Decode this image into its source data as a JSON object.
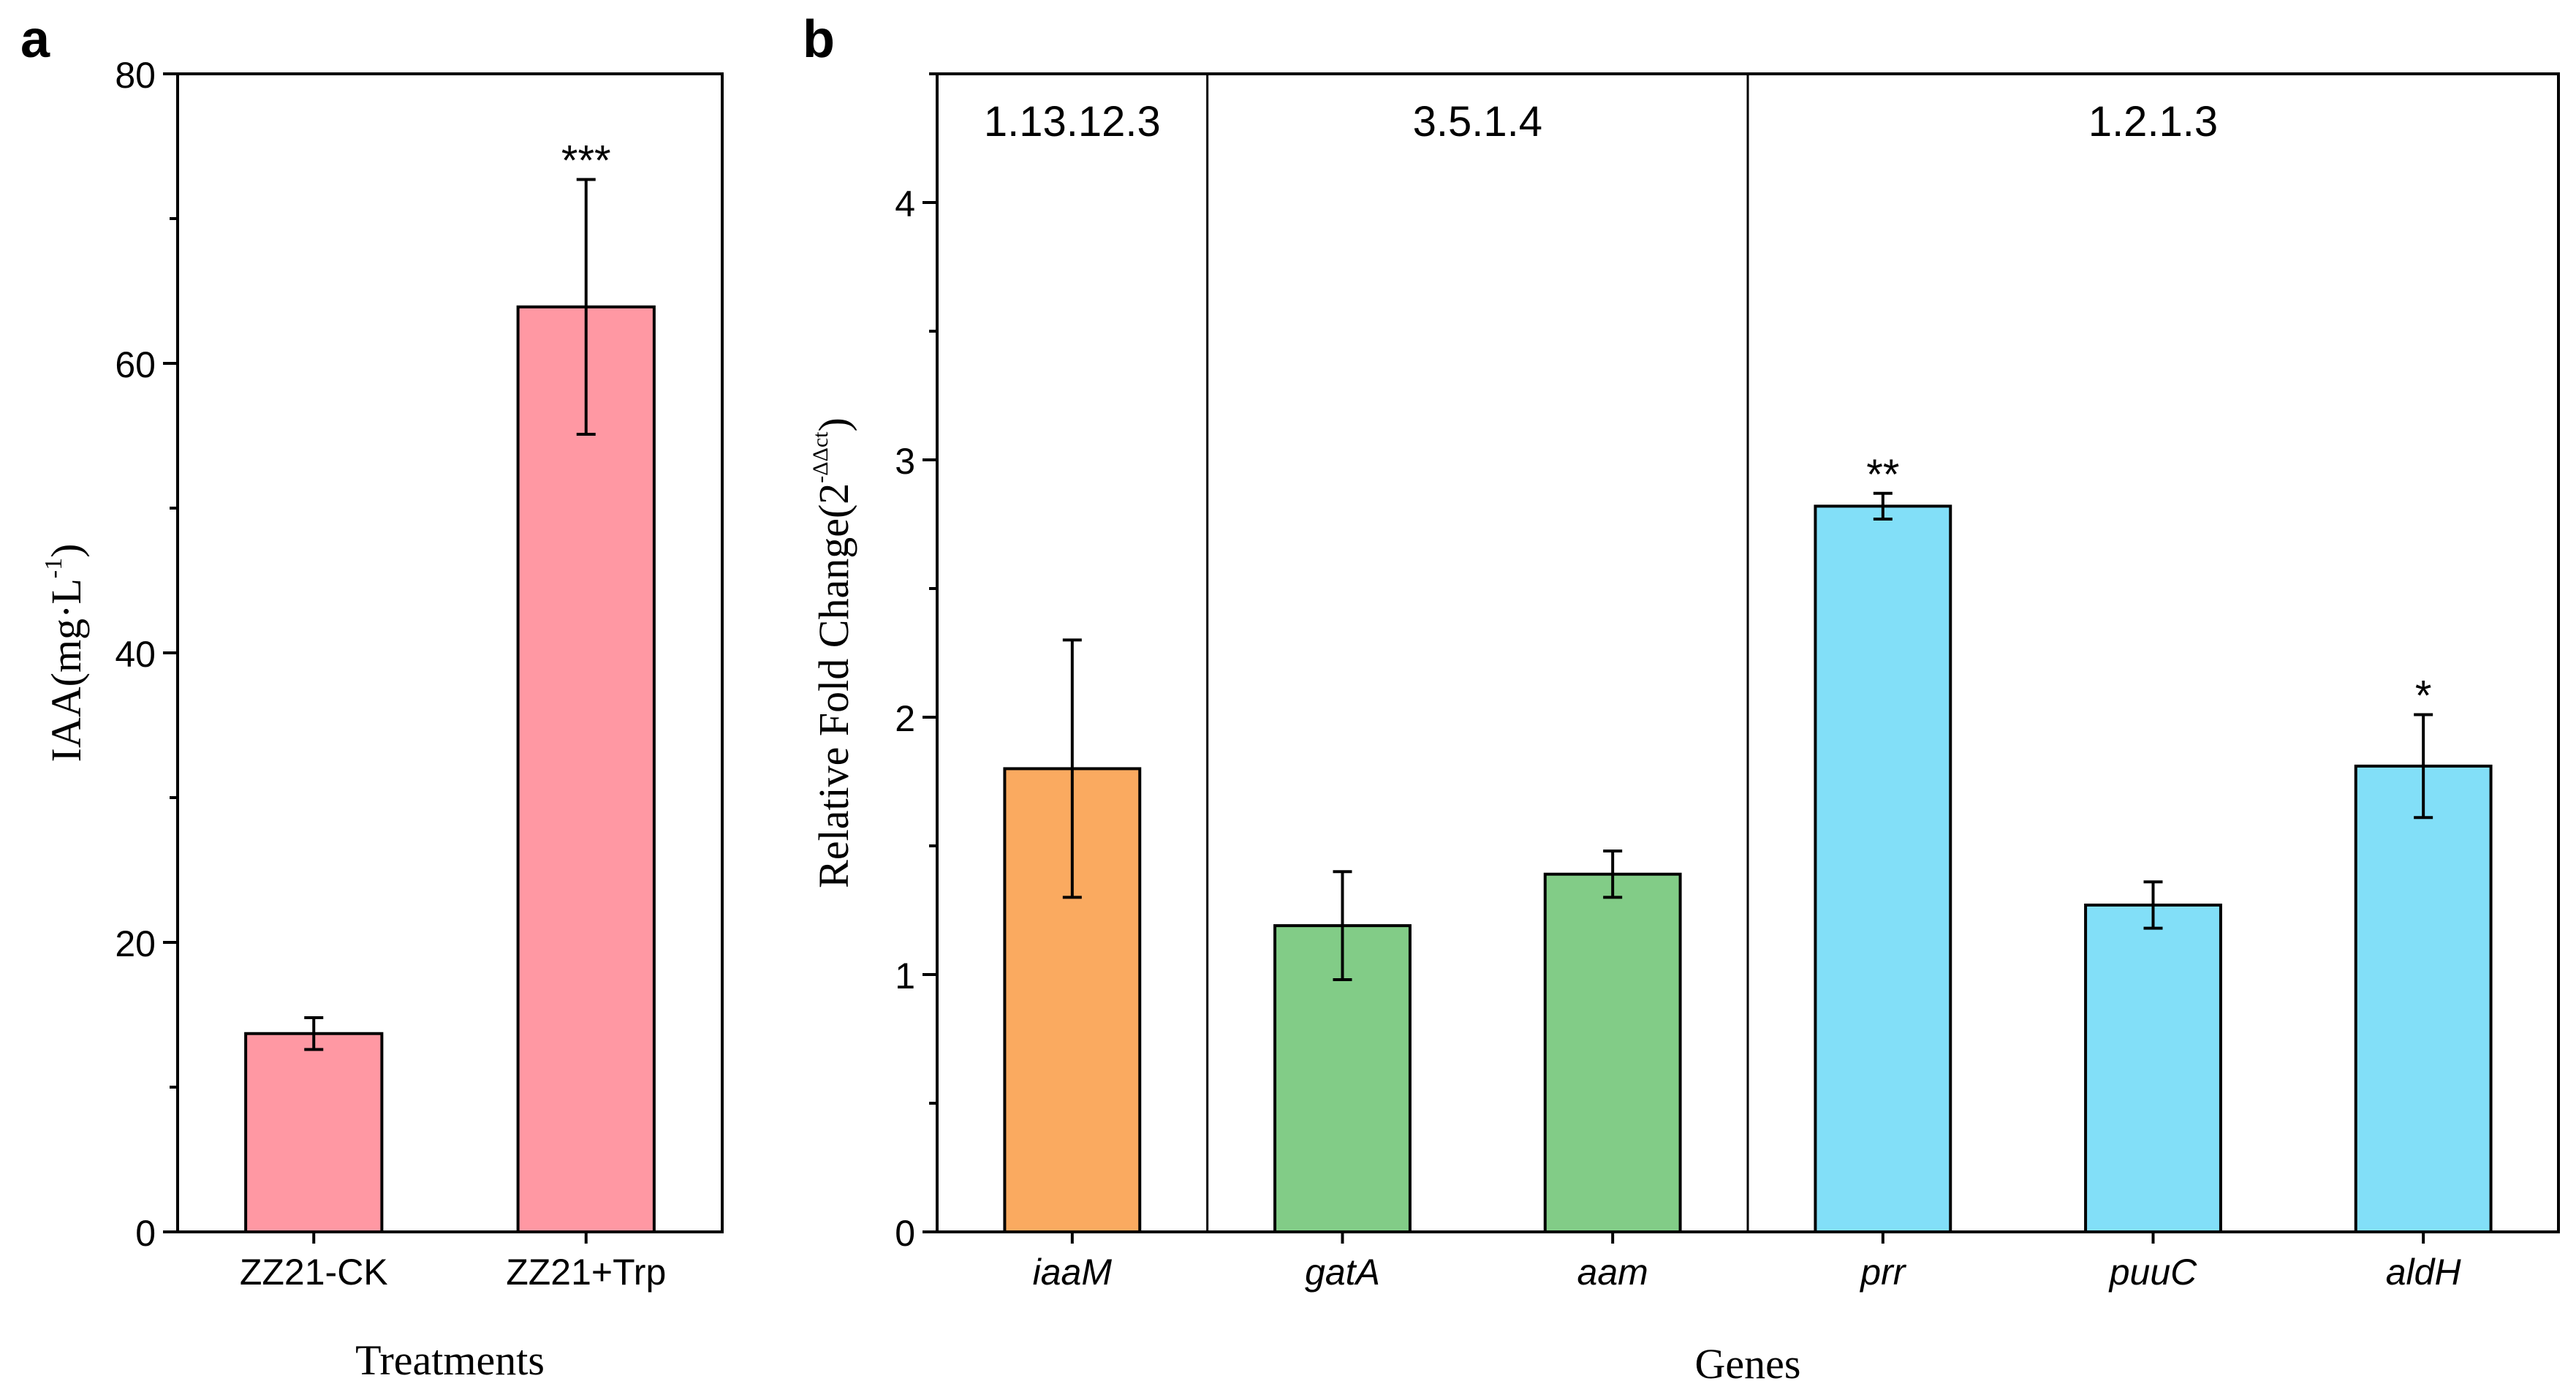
{
  "figure": {
    "panel_a_letter": "a",
    "panel_b_letter": "b"
  },
  "colors": {
    "pink": "#FF98A3",
    "orange": "#FAAA60",
    "green": "#82CC87",
    "blue": "#82DFF8",
    "axis": "#000000"
  },
  "chart_data": [
    {
      "id": "panel-a",
      "type": "bar",
      "title": "",
      "categories": [
        "ZZ21-CK",
        "ZZ21+Trp"
      ],
      "values": [
        13.7,
        63.9
      ],
      "errors": [
        1.1,
        8.8
      ],
      "significance": [
        "",
        "***"
      ],
      "xlabel": "Treatments",
      "ylabel_main": "IAA(mg·L",
      "ylabel_sup": "-1",
      "ylabel_end": ")",
      "ylim": [
        0,
        80
      ],
      "yticks": [
        0,
        20,
        40,
        60,
        80
      ],
      "ytick_labels": [
        "0",
        "20",
        "40",
        "60",
        "80"
      ],
      "color_key": "pink"
    },
    {
      "id": "panel-b",
      "type": "bar",
      "title": "",
      "categories": [
        "iaaM",
        "gatA",
        "aam",
        "prr",
        "puuC",
        "aldH"
      ],
      "values": [
        1.8,
        1.19,
        1.39,
        2.82,
        1.27,
        1.81
      ],
      "errors": [
        0.5,
        0.21,
        0.09,
        0.05,
        0.09,
        0.2
      ],
      "significance": [
        "",
        "",
        "",
        "**",
        "",
        "*"
      ],
      "bar_color_keys": [
        "orange",
        "green",
        "green",
        "blue",
        "blue",
        "blue"
      ],
      "groups": [
        {
          "label": "1.13.12.3",
          "start": 0,
          "end": 0
        },
        {
          "label": "3.5.1.4",
          "start": 1,
          "end": 2
        },
        {
          "label": "1.2.1.3",
          "start": 3,
          "end": 5
        }
      ],
      "xlabel": "Genes",
      "ylabel_main": "Relative Fold Change(2",
      "ylabel_sup": "-ΔΔct",
      "ylabel_end": ")",
      "ylim": [
        0,
        4.5
      ],
      "yticks": [
        0,
        1,
        2,
        3,
        4
      ],
      "ytick_labels": [
        "0",
        "1",
        "2",
        "3",
        "4"
      ]
    }
  ]
}
